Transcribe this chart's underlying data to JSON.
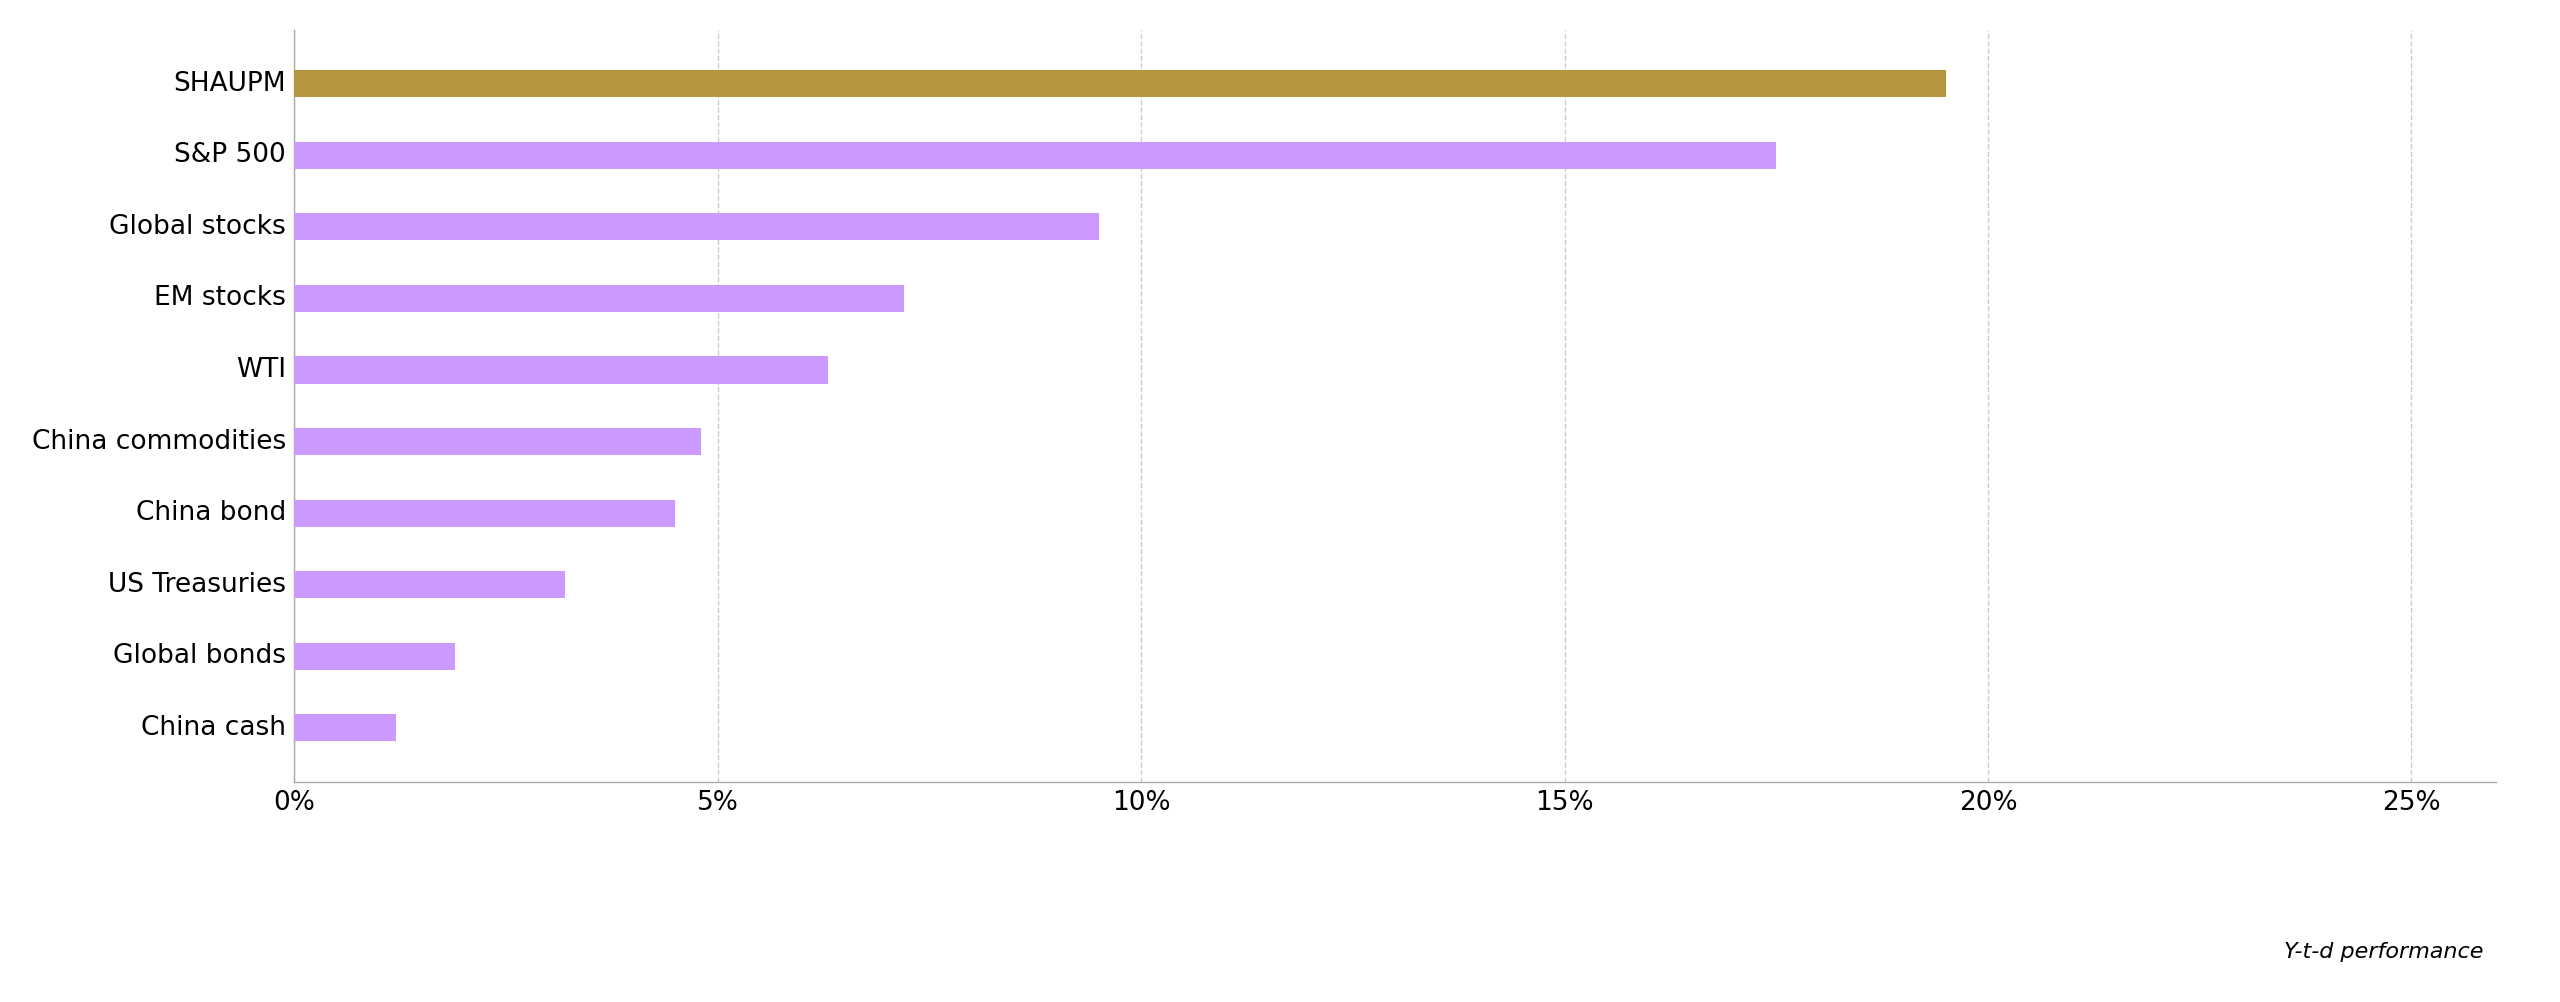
{
  "categories": [
    "SHAUPM",
    "S&P 500",
    "Global stocks",
    "EM stocks",
    "WTI",
    "China commodities",
    "China bond",
    "US Treasuries",
    "Global bonds",
    "China cash"
  ],
  "values": [
    0.195,
    0.175,
    0.095,
    0.072,
    0.063,
    0.048,
    0.045,
    0.032,
    0.019,
    0.012
  ],
  "bar_colors": [
    "#b5963e",
    "#cc99ff",
    "#cc99ff",
    "#cc99ff",
    "#cc99ff",
    "#cc99ff",
    "#cc99ff",
    "#cc99ff",
    "#cc99ff",
    "#cc99ff"
  ],
  "xlim": [
    0,
    0.26
  ],
  "xticks": [
    0,
    0.05,
    0.1,
    0.15,
    0.2,
    0.25
  ],
  "xticklabels": [
    "0%",
    "5%",
    "10%",
    "15%",
    "20%",
    "25%"
  ],
  "xlabel": "Y-t-d performance",
  "background_color": "#ffffff",
  "bar_height": 0.38,
  "grid_color": "#cccccc",
  "label_fontsize": 19,
  "tick_fontsize": 19,
  "xlabel_fontsize": 16
}
